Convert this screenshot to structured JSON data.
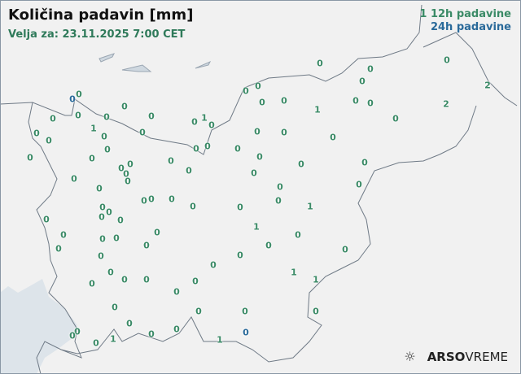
{
  "header": {
    "title": "Količina padavin [mm]",
    "valid": "Velja za: 23.11.2025 7:00 CET"
  },
  "legend": {
    "sample": "1",
    "h12": "12h padavine",
    "h24": "24h padavine"
  },
  "colors": {
    "h12": "#3a8a66",
    "h24": "#2a6a9a",
    "sea": "#dde4ea",
    "border": "#6f7a86"
  },
  "logo": {
    "icon": "sun-cloud-icon",
    "bold": "ARSO",
    "light": "VREME"
  },
  "stations": [
    {
      "v": "0",
      "t": "h12"
    },
    {
      "v": "0",
      "t": "h12"
    },
    {
      "v": "0",
      "t": "h12"
    },
    {
      "v": "0",
      "t": "h12"
    },
    {
      "v": "2",
      "t": "h12"
    },
    {
      "v": "0",
      "t": "h12"
    },
    {
      "v": "0",
      "t": "h12"
    },
    {
      "v": "0",
      "t": "h12"
    },
    {
      "v": "0",
      "t": "h24"
    },
    {
      "v": "0",
      "t": "h12"
    },
    {
      "v": "0",
      "t": "h12"
    },
    {
      "v": "0",
      "t": "h12"
    },
    {
      "v": "0",
      "t": "h12"
    },
    {
      "v": "2",
      "t": "h12"
    },
    {
      "v": "1",
      "t": "h12"
    },
    {
      "v": "0",
      "t": "h12"
    },
    {
      "v": "0",
      "t": "h12"
    },
    {
      "v": "0",
      "t": "h12"
    },
    {
      "v": "0",
      "t": "h12"
    },
    {
      "v": "0",
      "t": "h12"
    },
    {
      "v": "0",
      "t": "h12"
    },
    {
      "v": "1",
      "t": "h12"
    },
    {
      "v": "0",
      "t": "h12"
    },
    {
      "v": "0",
      "t": "h12"
    },
    {
      "v": "1",
      "t": "h12"
    },
    {
      "v": "0",
      "t": "h12"
    },
    {
      "v": "0",
      "t": "h12"
    },
    {
      "v": "0",
      "t": "h12"
    },
    {
      "v": "0",
      "t": "h12"
    },
    {
      "v": "0",
      "t": "h12"
    },
    {
      "v": "0",
      "t": "h12"
    },
    {
      "v": "0",
      "t": "h12"
    },
    {
      "v": "0",
      "t": "h12"
    },
    {
      "v": "0",
      "t": "h12"
    },
    {
      "v": "0",
      "t": "h12"
    },
    {
      "v": "0",
      "t": "h12"
    },
    {
      "v": "0",
      "t": "h12"
    },
    {
      "v": "0",
      "t": "h12"
    },
    {
      "v": "0",
      "t": "h12"
    },
    {
      "v": "0",
      "t": "h12"
    },
    {
      "v": "0",
      "t": "h12"
    },
    {
      "v": "0",
      "t": "h12"
    },
    {
      "v": "0",
      "t": "h12"
    },
    {
      "v": "0",
      "t": "h12"
    },
    {
      "v": "0",
      "t": "h12"
    },
    {
      "v": "0",
      "t": "h12"
    },
    {
      "v": "0",
      "t": "h12"
    },
    {
      "v": "0",
      "t": "h12"
    },
    {
      "v": "0",
      "t": "h12"
    },
    {
      "v": "0",
      "t": "h12"
    },
    {
      "v": "0",
      "t": "h12"
    },
    {
      "v": "0",
      "t": "h12"
    },
    {
      "v": "0",
      "t": "h12"
    },
    {
      "v": "0",
      "t": "h12"
    },
    {
      "v": "0",
      "t": "h12"
    },
    {
      "v": "0",
      "t": "h12"
    },
    {
      "v": "0",
      "t": "h12"
    },
    {
      "v": "1",
      "t": "h12"
    },
    {
      "v": "0",
      "t": "h12"
    },
    {
      "v": "0",
      "t": "h12"
    },
    {
      "v": "0",
      "t": "h12"
    },
    {
      "v": "0",
      "t": "h12"
    },
    {
      "v": "0",
      "t": "h12"
    },
    {
      "v": "1",
      "t": "h12"
    },
    {
      "v": "0",
      "t": "h12"
    },
    {
      "v": "0",
      "t": "h12"
    },
    {
      "v": "0",
      "t": "h12"
    },
    {
      "v": "0",
      "t": "h12"
    },
    {
      "v": "0",
      "t": "h12"
    },
    {
      "v": "0",
      "t": "h12"
    },
    {
      "v": "0",
      "t": "h12"
    },
    {
      "v": "0",
      "t": "h12"
    },
    {
      "v": "0",
      "t": "h12"
    },
    {
      "v": "0",
      "t": "h12"
    },
    {
      "v": "0",
      "t": "h12"
    },
    {
      "v": "0",
      "t": "h12"
    },
    {
      "v": "0",
      "t": "h12"
    },
    {
      "v": "0",
      "t": "h12"
    },
    {
      "v": "0",
      "t": "h12"
    },
    {
      "v": "0",
      "t": "h12"
    },
    {
      "v": "1",
      "t": "h12"
    },
    {
      "v": "1",
      "t": "h12"
    },
    {
      "v": "0",
      "t": "h12"
    },
    {
      "v": "0",
      "t": "h12"
    },
    {
      "v": "0",
      "t": "h12"
    },
    {
      "v": "0",
      "t": "h12"
    },
    {
      "v": "0",
      "t": "h12"
    },
    {
      "v": "0",
      "t": "h12"
    },
    {
      "v": "0",
      "t": "h12"
    },
    {
      "v": "0",
      "t": "h12"
    },
    {
      "v": "0",
      "t": "h12"
    },
    {
      "v": "1",
      "t": "h12"
    },
    {
      "v": "0",
      "t": "h12"
    },
    {
      "v": "0",
      "t": "h12"
    },
    {
      "v": "1",
      "t": "h12"
    },
    {
      "v": "0",
      "t": "h12"
    },
    {
      "v": "0",
      "t": "h12"
    },
    {
      "v": "0",
      "t": "h24"
    }
  ]
}
